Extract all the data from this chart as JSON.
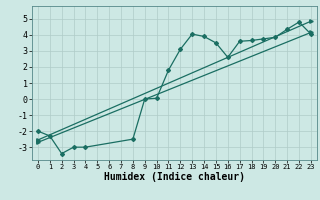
{
  "xlabel": "Humidex (Indice chaleur)",
  "bg_color": "#cde8e4",
  "grid_color": "#b0ccc8",
  "line_color": "#1a6e62",
  "xlim": [
    -0.5,
    23.5
  ],
  "ylim": [
    -3.8,
    5.8
  ],
  "yticks": [
    -3,
    -2,
    -1,
    0,
    1,
    2,
    3,
    4,
    5
  ],
  "xticks": [
    0,
    1,
    2,
    3,
    4,
    5,
    6,
    7,
    8,
    9,
    10,
    11,
    12,
    13,
    14,
    15,
    16,
    17,
    18,
    19,
    20,
    21,
    22,
    23
  ],
  "curve_x": [
    0,
    1,
    2,
    3,
    4,
    8,
    9,
    10,
    11,
    12,
    13,
    14,
    15,
    16,
    17,
    18,
    19,
    20,
    21,
    22,
    23
  ],
  "curve_y": [
    -2.0,
    -2.3,
    -3.4,
    -3.0,
    -3.0,
    -2.5,
    0.0,
    0.05,
    1.8,
    3.1,
    4.05,
    3.9,
    3.5,
    2.6,
    3.6,
    3.65,
    3.75,
    3.85,
    4.35,
    4.8,
    4.05
  ],
  "line1_x": [
    0,
    23
  ],
  "line1_y": [
    -2.7,
    4.15
  ],
  "line2_x": [
    0,
    23
  ],
  "line2_y": [
    -2.55,
    4.85
  ],
  "marker_x": [
    0,
    1,
    2,
    3,
    4,
    8,
    9,
    10,
    11,
    12,
    13,
    14,
    15,
    16,
    17,
    18,
    19,
    20,
    21,
    22,
    23
  ],
  "marker_y": [
    -2.0,
    -2.3,
    -3.4,
    -3.0,
    -3.0,
    -2.5,
    0.0,
    0.05,
    1.8,
    3.1,
    4.05,
    3.9,
    3.5,
    2.6,
    3.6,
    3.65,
    3.75,
    3.85,
    4.35,
    4.8,
    4.05
  ]
}
